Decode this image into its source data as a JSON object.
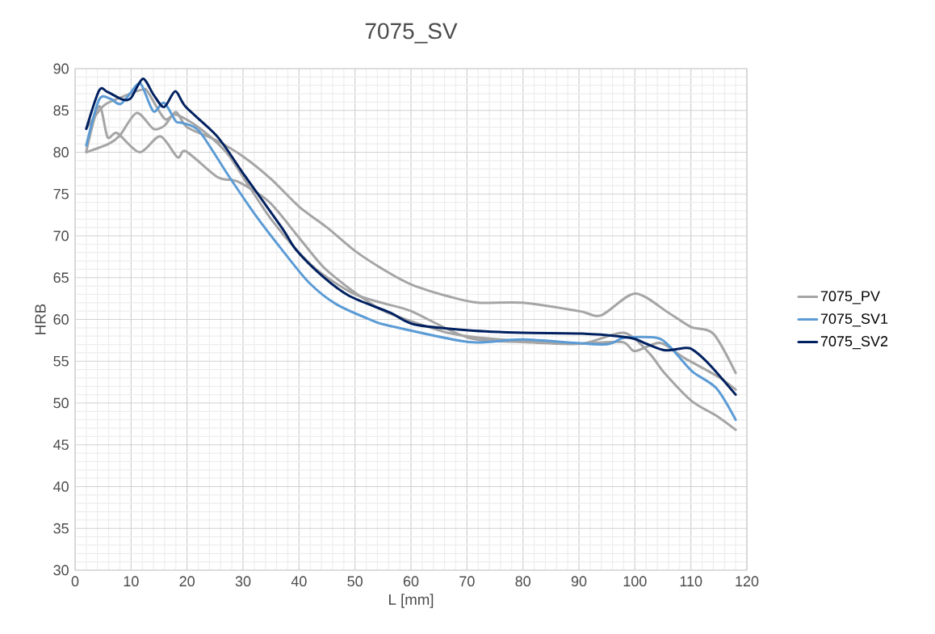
{
  "chart_data": {
    "type": "line",
    "title": "7075_SV",
    "xlabel": "L [mm]",
    "ylabel": "HRB",
    "xlim": [
      0,
      120
    ],
    "xticks": [
      0,
      10,
      20,
      30,
      40,
      50,
      60,
      70,
      80,
      90,
      100,
      110,
      120
    ],
    "ylim": [
      30,
      90
    ],
    "yticks": [
      30,
      35,
      40,
      45,
      50,
      55,
      60,
      65,
      70,
      75,
      80,
      85,
      90
    ],
    "grid": true,
    "legend": "right",
    "marker": "none",
    "line_style": "solid",
    "series": [
      {
        "name": "7075_PV",
        "color": "#a5a5a5",
        "x": [
          2,
          6,
          8,
          11,
          14,
          16,
          18,
          20,
          25,
          30,
          35,
          40,
          45,
          50,
          55,
          60,
          67,
          72,
          80,
          90,
          94,
          100,
          106,
          110,
          114,
          118
        ],
        "values": [
          80,
          81,
          82,
          84.7,
          82.8,
          83.2,
          84.8,
          83,
          81.5,
          79.5,
          76.8,
          73.5,
          71,
          68.2,
          66,
          64.2,
          62.7,
          62,
          62,
          61,
          60.5,
          63.1,
          60.8,
          59.1,
          58.3,
          53.6
        ]
      },
      {
        "color": "#a5a5a5",
        "x": [
          2,
          4.3,
          5.8,
          7.5,
          11.5,
          15.2,
          18.3,
          19.8,
          25.5,
          29,
          34.6,
          39.5,
          44.3,
          49,
          52,
          55.8,
          65.5,
          70,
          80,
          90,
          97.7,
          100,
          104.5,
          108.8,
          115,
          118
        ],
        "values": [
          80.1,
          85.5,
          81.8,
          82.3,
          80,
          81.9,
          79.4,
          80.1,
          77,
          76.5,
          74.1,
          70.2,
          66.3,
          63.7,
          62.3,
          60.8,
          58.6,
          58,
          57.4,
          57.1,
          57.3,
          56.2,
          57.2,
          55.4,
          53.1,
          51.6
        ]
      },
      {
        "color": "#a5a5a5",
        "x": [
          2,
          5,
          8,
          12,
          13,
          16,
          18,
          22,
          27,
          31,
          35,
          40,
          44,
          50,
          55.8,
          60,
          70.3,
          80,
          90.5,
          98,
          102.5,
          105.4,
          110.2,
          114.5,
          118
        ],
        "values": [
          82.8,
          85.5,
          86.5,
          87.5,
          87.2,
          84,
          84.5,
          83,
          80,
          76,
          72,
          68,
          65.5,
          63,
          61.8,
          61,
          57.8,
          57.3,
          57.1,
          58.4,
          56,
          53.5,
          50.2,
          48.5,
          46.8
        ]
      },
      {
        "name": "7075_SV1",
        "color": "#5b9bd5",
        "x": [
          2,
          4.3,
          6.3,
          8.2,
          11.1,
          12,
          14,
          15.9,
          18,
          19.2,
          22.2,
          27.4,
          32.3,
          37,
          41.8,
          46.7,
          53,
          55.8,
          70.3,
          80,
          94.4,
          98,
          103.9,
          106.3,
          110.2,
          114.5,
          118
        ],
        "values": [
          80.8,
          86.3,
          86.4,
          85.8,
          88.1,
          87.9,
          84.9,
          85.9,
          83.7,
          83.5,
          82.5,
          77.2,
          72.4,
          68.3,
          64.4,
          61.8,
          59.9,
          59.3,
          57.3,
          57.6,
          57,
          57.8,
          57.8,
          56.7,
          53.8,
          51.8,
          48
        ]
      },
      {
        "name": "7075_SV2",
        "color": "#002060",
        "x": [
          2,
          4.3,
          5.8,
          8.5,
          10,
          12.1,
          14,
          15.9,
          17.9,
          19.8,
          25.5,
          30.3,
          37,
          39.5,
          44.3,
          49,
          56.3,
          60.6,
          70.3,
          80,
          90.5,
          99.1,
          102,
          105.4,
          109.2,
          110.7,
          113.6,
          118
        ],
        "values": [
          82.8,
          87.4,
          87.2,
          86.3,
          86.5,
          88.8,
          86.9,
          85.4,
          87.3,
          85.4,
          81.8,
          77.2,
          70.9,
          68.3,
          65.1,
          62.8,
          60.8,
          59.4,
          58.7,
          58.4,
          58.3,
          57.8,
          57.1,
          56.3,
          56.6,
          56.2,
          54.4,
          51
        ]
      }
    ]
  }
}
